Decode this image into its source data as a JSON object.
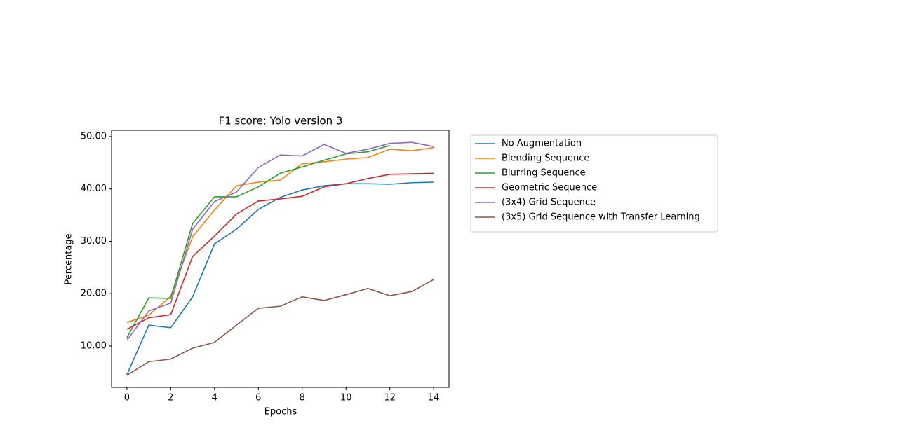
{
  "chart_data": {
    "type": "line",
    "title": "F1 score: Yolo version 3",
    "xlabel": "Epochs",
    "ylabel": "Percentage",
    "x": [
      0,
      1,
      2,
      3,
      4,
      5,
      6,
      7,
      8,
      9,
      10,
      11,
      12,
      13,
      14
    ],
    "xlim": [
      -0.7,
      14.7
    ],
    "xticks": [
      0,
      2,
      4,
      6,
      8,
      10,
      12,
      14
    ],
    "ylim": [
      2.1,
      51.2
    ],
    "yticks": [
      {
        "value": 10,
        "label": "10.00"
      },
      {
        "value": 20,
        "label": "20.00"
      },
      {
        "value": 30,
        "label": "30.00"
      },
      {
        "value": 40,
        "label": "40.00"
      },
      {
        "value": 50,
        "label": "50.00"
      }
    ],
    "grid": false,
    "legend": "outside right",
    "series": [
      {
        "name": "No Augmentation",
        "color": "#1f77b4",
        "values": [
          4.5,
          14.0,
          13.5,
          19.4,
          29.5,
          32.3,
          36.1,
          38.4,
          39.8,
          40.6,
          41.0,
          41.0,
          40.9,
          41.2,
          41.3
        ]
      },
      {
        "name": "Blending Sequence",
        "color": "#ff7f0e",
        "values": [
          14.5,
          15.9,
          19.5,
          30.9,
          36.0,
          40.6,
          41.3,
          41.7,
          44.8,
          45.2,
          45.7,
          46.0,
          47.6,
          47.3,
          47.9
        ]
      },
      {
        "name": "Blurring Sequence",
        "color": "#2ca02c",
        "values": [
          11.6,
          19.2,
          19.1,
          33.4,
          38.5,
          38.5,
          40.4,
          43.0,
          44.2,
          45.5,
          46.7,
          47.1,
          48.3,
          null,
          null
        ]
      },
      {
        "name": "Geometric Sequence",
        "color": "#d62728",
        "values": [
          13.2,
          15.4,
          16.0,
          27.1,
          31.0,
          35.2,
          37.7,
          38.1,
          38.6,
          40.4,
          41.0,
          42.0,
          42.8,
          42.9,
          43.0
        ]
      },
      {
        "name": "(3x4) Grid Sequence",
        "color": "#9467bd",
        "values": [
          11.1,
          16.7,
          18.2,
          32.3,
          37.6,
          39.4,
          44.1,
          46.5,
          46.3,
          48.5,
          46.8,
          47.6,
          48.7,
          48.9,
          48.1
        ]
      },
      {
        "name": "(3x5) Grid Sequence with Transfer Learning",
        "color": "#8c564b",
        "values": [
          4.4,
          7.0,
          7.5,
          9.6,
          10.7,
          14.0,
          17.2,
          17.6,
          19.4,
          18.7,
          19.8,
          21.0,
          19.6,
          20.4,
          22.7
        ]
      }
    ]
  }
}
